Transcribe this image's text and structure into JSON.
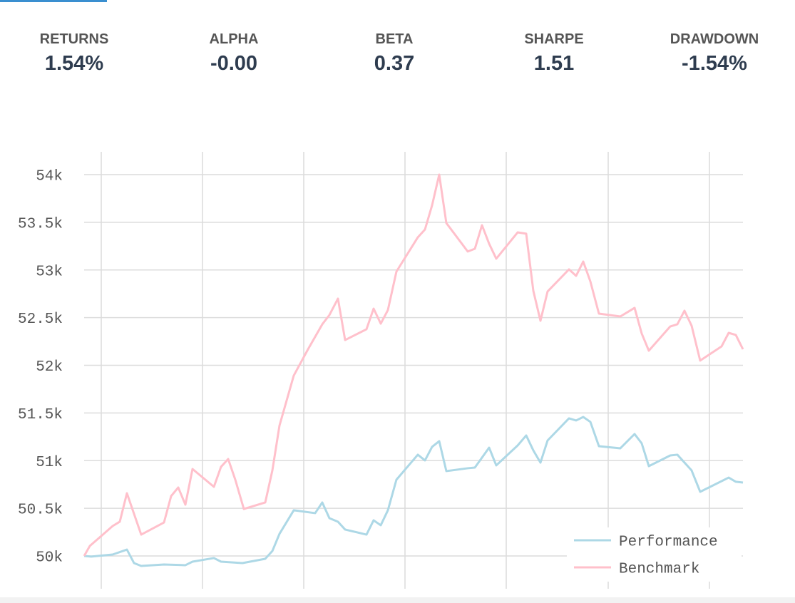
{
  "stats": [
    {
      "label": "RETURNS",
      "value": "1.54%"
    },
    {
      "label": "ALPHA",
      "value": "-0.00"
    },
    {
      "label": "BETA",
      "value": "0.37"
    },
    {
      "label": "SHARPE",
      "value": "1.51"
    },
    {
      "label": "DRAWDOWN",
      "value": "-1.54%"
    }
  ],
  "chart_data": {
    "type": "line",
    "xlim": [
      0,
      924
    ],
    "ylim": [
      49656,
      54239
    ],
    "yticks": [
      {
        "value": 50000,
        "label": "50k"
      },
      {
        "value": 50500,
        "label": "50.5k"
      },
      {
        "value": 51000,
        "label": "51k"
      },
      {
        "value": 51500,
        "label": "51.5k"
      },
      {
        "value": 52000,
        "label": "52k"
      },
      {
        "value": 52500,
        "label": "52.5k"
      },
      {
        "value": 53000,
        "label": "53k"
      },
      {
        "value": 53500,
        "label": "53.5k"
      },
      {
        "value": 54000,
        "label": "54k"
      }
    ],
    "grid": true,
    "legend": "lower right",
    "series": [
      {
        "name": "Performance",
        "color": "#add8e6",
        "x": [
          0,
          10,
          40,
          60,
          70,
          80,
          112,
          142,
          152,
          182,
          192,
          222,
          254,
          264,
          274,
          294,
          324,
          334,
          344,
          356,
          366,
          396,
          406,
          416,
          426,
          438,
          468,
          478,
          488,
          498,
          508,
          538,
          548,
          568,
          578,
          608,
          620,
          630,
          640,
          650,
          680,
          690,
          700,
          710,
          722,
          752,
          772,
          782,
          792,
          822,
          832,
          852,
          864,
          904,
          914,
          924
        ],
        "values": [
          50000,
          49993,
          50015,
          50067,
          49925,
          49895,
          49910,
          49903,
          49940,
          49978,
          49940,
          49925,
          49970,
          50052,
          50232,
          50479,
          50449,
          50561,
          50396,
          50359,
          50277,
          50224,
          50374,
          50322,
          50479,
          50800,
          51062,
          51002,
          51144,
          51204,
          50890,
          50920,
          50927,
          51136,
          50950,
          51159,
          51264,
          51107,
          50979,
          51211,
          51443,
          51421,
          51458,
          51406,
          51151,
          51129,
          51279,
          51181,
          50942,
          51054,
          51062,
          50897,
          50673,
          50822,
          50778,
          50770
        ]
      },
      {
        "name": "Benchmark",
        "color": "#ffc0cb",
        "x": [
          0,
          8,
          24,
          40,
          50,
          60,
          80,
          112,
          122,
          132,
          142,
          152,
          182,
          192,
          202,
          212,
          224,
          254,
          264,
          274,
          294,
          314,
          334,
          344,
          356,
          366,
          396,
          406,
          416,
          426,
          438,
          468,
          478,
          488,
          498,
          508,
          538,
          548,
          558,
          568,
          578,
          608,
          620,
          630,
          640,
          650,
          680,
          690,
          700,
          710,
          722,
          752,
          772,
          782,
          792,
          822,
          832,
          842,
          852,
          864,
          894,
          904,
          914,
          924
        ],
        "values": [
          50000,
          50105,
          50209,
          50314,
          50359,
          50658,
          50224,
          50351,
          50628,
          50718,
          50538,
          50912,
          50725,
          50935,
          51017,
          50800,
          50493,
          50561,
          50897,
          51368,
          51892,
          52168,
          52430,
          52527,
          52699,
          52265,
          52378,
          52594,
          52437,
          52579,
          52983,
          53342,
          53424,
          53678,
          54000,
          53492,
          53193,
          53222,
          53469,
          53275,
          53118,
          53394,
          53380,
          52781,
          52467,
          52774,
          53006,
          52938,
          53088,
          52879,
          52542,
          52512,
          52602,
          52333,
          52153,
          52407,
          52430,
          52572,
          52415,
          52049,
          52198,
          52340,
          52318,
          52168
        ]
      }
    ]
  }
}
